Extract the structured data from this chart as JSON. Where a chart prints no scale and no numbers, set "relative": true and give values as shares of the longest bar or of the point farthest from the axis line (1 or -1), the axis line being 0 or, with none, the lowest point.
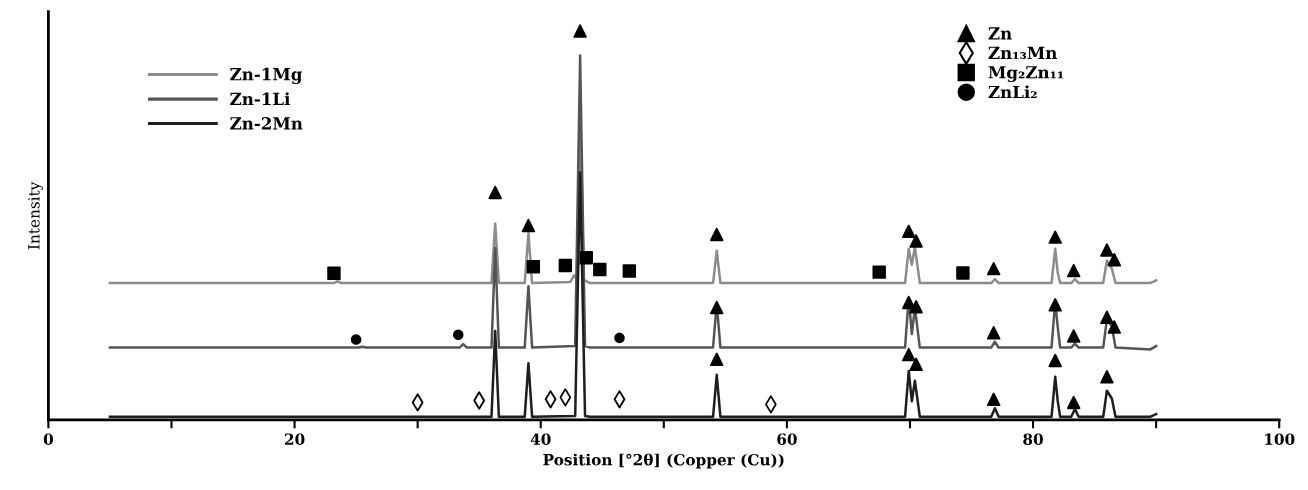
{
  "chart_data": {
    "type": "line",
    "relative": true,
    "xlabel": "Position [°2θ] (Copper (Cu))",
    "ylabel": "Intensity",
    "xlim": [
      0,
      100
    ],
    "xticks": [
      0,
      {
        "value": 10,
        "label": null
      },
      20,
      {
        "value": 30,
        "label": null
      },
      40,
      {
        "value": 50,
        "label": null
      },
      60,
      {
        "value": 70,
        "label": null
      },
      80,
      {
        "value": 90,
        "label": null
      },
      100
    ],
    "grid": false,
    "legend": "top left",
    "marker": "none",
    "line_style": "solid",
    "series": [
      {
        "name": "Zn-1Mg",
        "color": "#8c8c8c",
        "x": [
          5,
          23.2,
          23.5,
          23.8,
          36.0,
          36.3,
          36.6,
          38.7,
          39.0,
          39.3,
          42.4,
          42.7,
          42.95,
          43.2,
          43.5,
          44.0,
          54.0,
          54.3,
          54.6,
          69.6,
          69.9,
          70.15,
          70.4,
          70.8,
          76.6,
          76.9,
          77.2,
          81.5,
          81.8,
          82.0,
          82.2,
          83.1,
          83.4,
          83.7,
          85.7,
          86.0,
          86.4,
          86.7,
          89.5,
          90
        ],
        "values": [
          0.352,
          0.352,
          0.357,
          0.352,
          0.352,
          0.505,
          0.352,
          0.352,
          0.48,
          0.352,
          0.355,
          0.372,
          0.36,
          0.804,
          0.36,
          0.352,
          0.352,
          0.435,
          0.352,
          0.352,
          0.44,
          0.399,
          0.445,
          0.352,
          0.352,
          0.362,
          0.352,
          0.352,
          0.44,
          0.38,
          0.352,
          0.352,
          0.362,
          0.352,
          0.352,
          0.41,
          0.389,
          0.352,
          0.352,
          0.359
        ]
      },
      {
        "name": "Zn-1Li",
        "color": "#555555",
        "x": [
          5,
          25.2,
          25.5,
          25.8,
          33.4,
          33.7,
          34.0,
          36.0,
          36.3,
          36.6,
          38.7,
          39.0,
          39.3,
          42.8,
          43.2,
          43.6,
          44.0,
          54.0,
          54.3,
          54.6,
          69.6,
          69.9,
          70.15,
          70.4,
          70.8,
          76.6,
          76.9,
          77.2,
          81.5,
          81.8,
          82.0,
          82.2,
          83.1,
          83.4,
          83.7,
          85.7,
          86.0,
          86.4,
          86.7,
          89.5,
          90
        ],
        "values": [
          0.186,
          0.186,
          0.188,
          0.186,
          0.186,
          0.195,
          0.186,
          0.186,
          0.442,
          0.186,
          0.186,
          0.344,
          0.186,
          0.19,
          0.937,
          0.19,
          0.186,
          0.186,
          0.299,
          0.186,
          0.186,
          0.314,
          0.221,
          0.289,
          0.186,
          0.186,
          0.201,
          0.186,
          0.186,
          0.304,
          0.24,
          0.186,
          0.186,
          0.196,
          0.186,
          0.186,
          0.259,
          0.241,
          0.186,
          0.181,
          0.19
        ]
      },
      {
        "name": "Zn-2Mn",
        "color": "#1e1e1e",
        "x": [
          5,
          36.0,
          36.3,
          36.6,
          38.7,
          39.0,
          39.3,
          42.8,
          43.2,
          43.6,
          44.0,
          54.0,
          54.3,
          54.6,
          69.6,
          69.9,
          70.15,
          70.4,
          70.8,
          76.6,
          76.9,
          77.2,
          81.5,
          81.8,
          82.0,
          82.2,
          83.1,
          83.4,
          83.7,
          85.7,
          86.0,
          86.4,
          86.7,
          89.5,
          90
        ],
        "values": [
          0.008,
          0.008,
          0.229,
          0.008,
          0.008,
          0.146,
          0.008,
          0.01,
          0.636,
          0.01,
          0.008,
          0.008,
          0.116,
          0.008,
          0.008,
          0.126,
          0.048,
          0.101,
          0.008,
          0.008,
          0.03,
          0.008,
          0.008,
          0.111,
          0.05,
          0.008,
          0.008,
          0.028,
          0.008,
          0.008,
          0.075,
          0.055,
          0.008,
          0.008,
          0.015
        ]
      },
      {
        "name": "Zn",
        "type": "scatter",
        "marker": "triangle",
        "color": "#000000",
        "x": [
          36.3,
          39.0,
          43.2,
          54.3,
          69.9,
          70.5,
          76.8,
          81.8,
          83.3,
          86.0,
          86.6,
          54.3,
          69.9,
          70.5,
          76.8,
          81.8,
          83.3,
          86.0,
          86.6,
          54.3,
          69.9,
          70.5,
          76.8,
          81.8,
          83.3,
          86.0
        ],
        "values": [
          0.585,
          0.5,
          1.0,
          0.477,
          0.485,
          0.46,
          0.389,
          0.47,
          0.384,
          0.437,
          0.412,
          0.289,
          0.302,
          0.291,
          0.224,
          0.296,
          0.216,
          0.264,
          0.239,
          0.156,
          0.168,
          0.143,
          0.053,
          0.153,
          0.045,
          0.111
        ]
      },
      {
        "name": "Zn₁₃Mn",
        "type": "scatter",
        "marker": "diamond",
        "color": "#000000",
        "x": [
          30.0,
          35.0,
          40.8,
          42.0,
          46.4,
          58.7
        ],
        "values": [
          0.045,
          0.05,
          0.053,
          0.058,
          0.053,
          0.04
        ]
      },
      {
        "name": "Mg₂Zn₁₁",
        "type": "scatter",
        "marker": "square",
        "color": "#000000",
        "x": [
          23.2,
          39.4,
          42.0,
          43.7,
          44.8,
          47.2,
          67.5,
          74.3
        ],
        "values": [
          0.377,
          0.394,
          0.397,
          0.417,
          0.387,
          0.383,
          0.38,
          0.378
        ]
      },
      {
        "name": "ZnLi₂",
        "type": "scatter",
        "marker": "circle",
        "color": "#000000",
        "x": [
          25.0,
          33.3,
          46.4
        ],
        "values": [
          0.207,
          0.219,
          0.211
        ]
      }
    ]
  }
}
